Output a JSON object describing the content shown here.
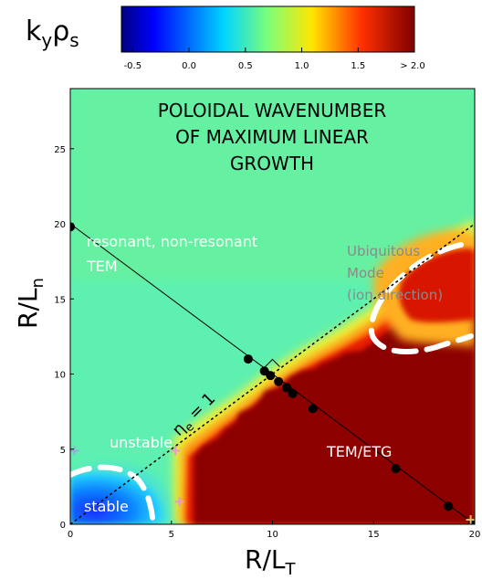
{
  "chart_data": {
    "type": "heatmap",
    "title_lines": [
      "POLOIDAL WAVENUMBER",
      "OF MAXIMUM LINEAR",
      "GROWTH"
    ],
    "xlabel": "R/L",
    "xlabel_sub": "T",
    "ylabel": "R/L",
    "ylabel_sub": "n",
    "xlim": [
      0,
      20
    ],
    "ylim": [
      0,
      29
    ],
    "xticks": [
      "0",
      "5",
      "10",
      "15",
      "20"
    ],
    "yticks": [
      "0",
      "5",
      "10",
      "15",
      "20",
      "25"
    ],
    "colorbar": {
      "label": "k",
      "label_sub_1": "y",
      "label_2": "ρ",
      "label_sub_2": "s",
      "ticks": [
        "-0.5",
        "0.0",
        "0.5",
        "1.0",
        "1.5",
        "> 2.0"
      ],
      "range": [
        -0.6,
        2.0
      ]
    },
    "annotations": {
      "resonant_1": "resonant, non-resonant",
      "resonant_2": "TEM",
      "ubiq_1": "Ubiquitous",
      "ubiq_2": "Mode",
      "ubiq_3": "(ion direction)",
      "unstable": "unstable",
      "stable": "stable",
      "temetg": "TEM/ETG",
      "eta_symbol": "η",
      "eta_sub": "e",
      "eta_rest": "= 1"
    },
    "scan_line": {
      "from": [
        0,
        20
      ],
      "to": [
        20,
        0
      ]
    },
    "eta_line": {
      "from": [
        0,
        0
      ],
      "to": [
        20,
        20
      ]
    },
    "points": [
      {
        "x": 0.0,
        "y": 19.8
      },
      {
        "x": 8.8,
        "y": 11.0
      },
      {
        "x": 9.6,
        "y": 10.2
      },
      {
        "x": 9.9,
        "y": 9.9
      },
      {
        "x": 10.3,
        "y": 9.5
      },
      {
        "x": 10.7,
        "y": 9.1
      },
      {
        "x": 11.0,
        "y": 8.7
      },
      {
        "x": 12.0,
        "y": 7.7
      },
      {
        "x": 16.1,
        "y": 3.7
      },
      {
        "x": 18.7,
        "y": 1.2
      },
      {
        "x": 19.9,
        "y": 0.05
      }
    ],
    "crosses": [
      {
        "x": 0.2,
        "y": 4.9,
        "color": "#9aa8e0"
      },
      {
        "x": 5.2,
        "y": 4.9,
        "color": "#e89ac8"
      },
      {
        "x": 5.4,
        "y": 1.5,
        "color": "#e89ac8"
      },
      {
        "x": 19.8,
        "y": 0.3,
        "color": "#e0c070"
      }
    ]
  }
}
